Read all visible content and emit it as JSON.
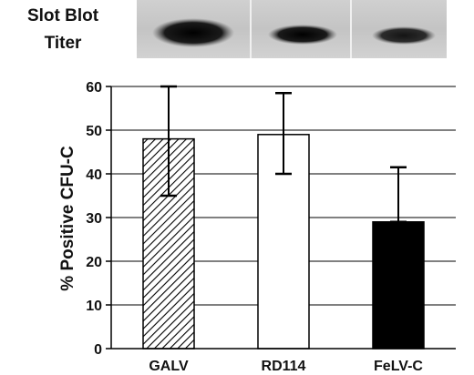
{
  "blot": {
    "label_line1": "Slot Blot",
    "label_line2": "Titer"
  },
  "chart_data": {
    "type": "bar",
    "title": "",
    "xlabel": "",
    "ylabel": "% Positive CFU-C",
    "categories": [
      "GALV",
      "RD114",
      "FeLV-C"
    ],
    "values": [
      48,
      49,
      29
    ],
    "error_upper": [
      60,
      58.5,
      41.5
    ],
    "error_lower": [
      35,
      40,
      29
    ],
    "fills": [
      "hatched",
      "#ffffff",
      "#000000"
    ],
    "ylim": [
      0,
      60
    ],
    "yticks": [
      0,
      10,
      20,
      30,
      40,
      50,
      60
    ],
    "grid": true
  }
}
